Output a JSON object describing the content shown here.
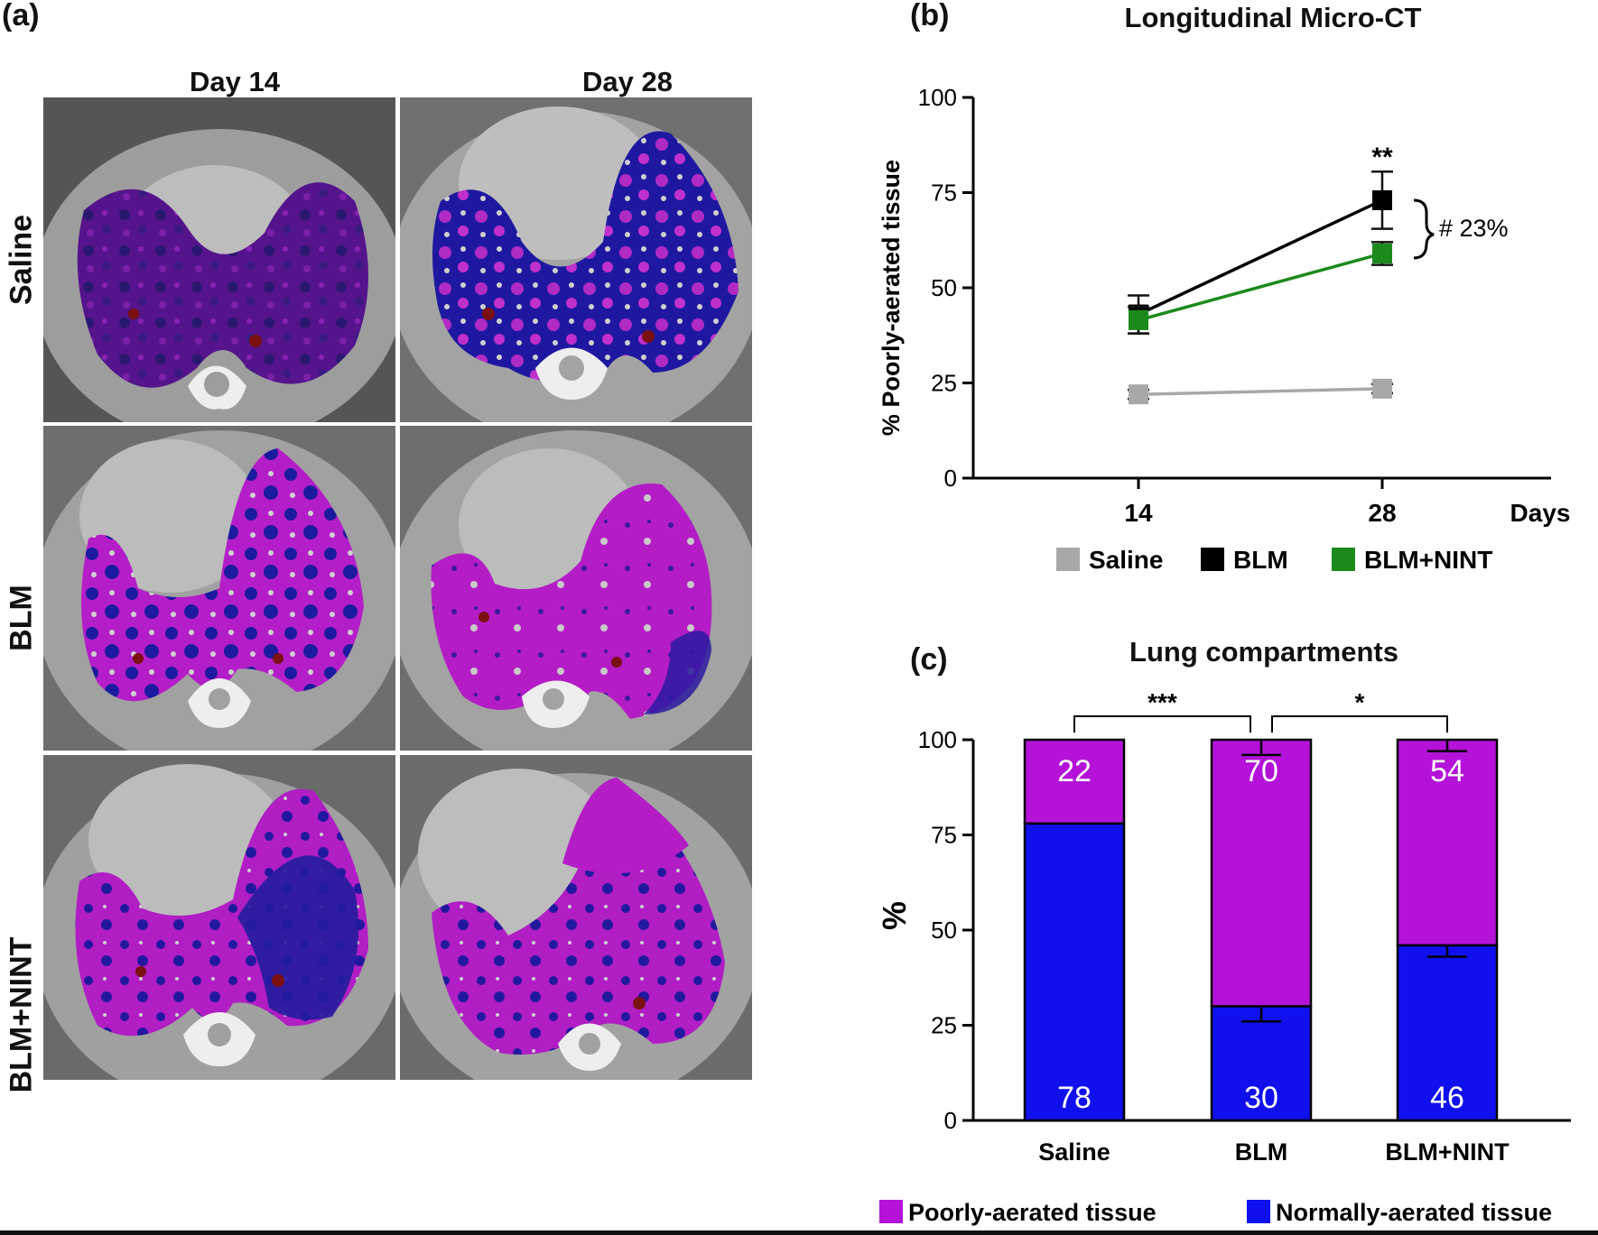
{
  "panel_a": {
    "label": "(a)",
    "col_headers": [
      "Day 14",
      "Day 28"
    ],
    "row_labels": [
      "Saline",
      "BLM",
      "BLM+NINT"
    ]
  },
  "chart_data": [
    {
      "id": "b",
      "panel_label": "(b)",
      "type": "line",
      "title": "Longitudinal Micro-CT",
      "xlabel": "Days",
      "ylabel": "% Poorly-aerated tissue",
      "x": [
        14,
        28
      ],
      "x_tick_labels": [
        "14",
        "28"
      ],
      "ylim": [
        0,
        100
      ],
      "y_ticks": [
        0,
        25,
        50,
        75,
        100
      ],
      "series": [
        {
          "name": "Saline",
          "color": "#a8a8a8",
          "values": [
            22,
            23.5
          ],
          "errors": [
            1.2,
            1.2
          ]
        },
        {
          "name": "BLM",
          "color": "#000000",
          "values": [
            43,
            73
          ],
          "errors": [
            5,
            7.5
          ]
        },
        {
          "name": "BLM+NINT",
          "color": "#1b8a1b",
          "values": [
            41.5,
            59
          ],
          "errors": [
            3.5,
            3
          ]
        }
      ],
      "annotations": {
        "significance_28": "**",
        "bracket": "# 23%"
      }
    },
    {
      "id": "c",
      "panel_label": "(c)",
      "type": "bar",
      "stacked": true,
      "title": "Lung compartments",
      "ylabel": "%",
      "ylim": [
        0,
        100
      ],
      "y_ticks": [
        0,
        25,
        50,
        75,
        100
      ],
      "categories": [
        "Saline",
        "BLM",
        "BLM+NINT"
      ],
      "series": [
        {
          "name": "Normally-aerated tissue",
          "color": "#1010ee",
          "values": [
            78,
            30,
            46
          ],
          "errors": [
            0,
            4,
            3
          ]
        },
        {
          "name": "Poorly-aerated tissue",
          "color": "#b412d8",
          "values": [
            22,
            70,
            54
          ],
          "errors": [
            0,
            4,
            3
          ]
        }
      ],
      "value_labels_top": [
        "22",
        "70",
        "54"
      ],
      "value_labels_bottom": [
        "78",
        "30",
        "46"
      ],
      "significance": [
        {
          "between": [
            0,
            1
          ],
          "label": "***"
        },
        {
          "between": [
            1,
            2
          ],
          "label": "*"
        }
      ],
      "legend": [
        "Poorly-aerated tissue",
        "Normally-aerated tissue"
      ]
    }
  ]
}
